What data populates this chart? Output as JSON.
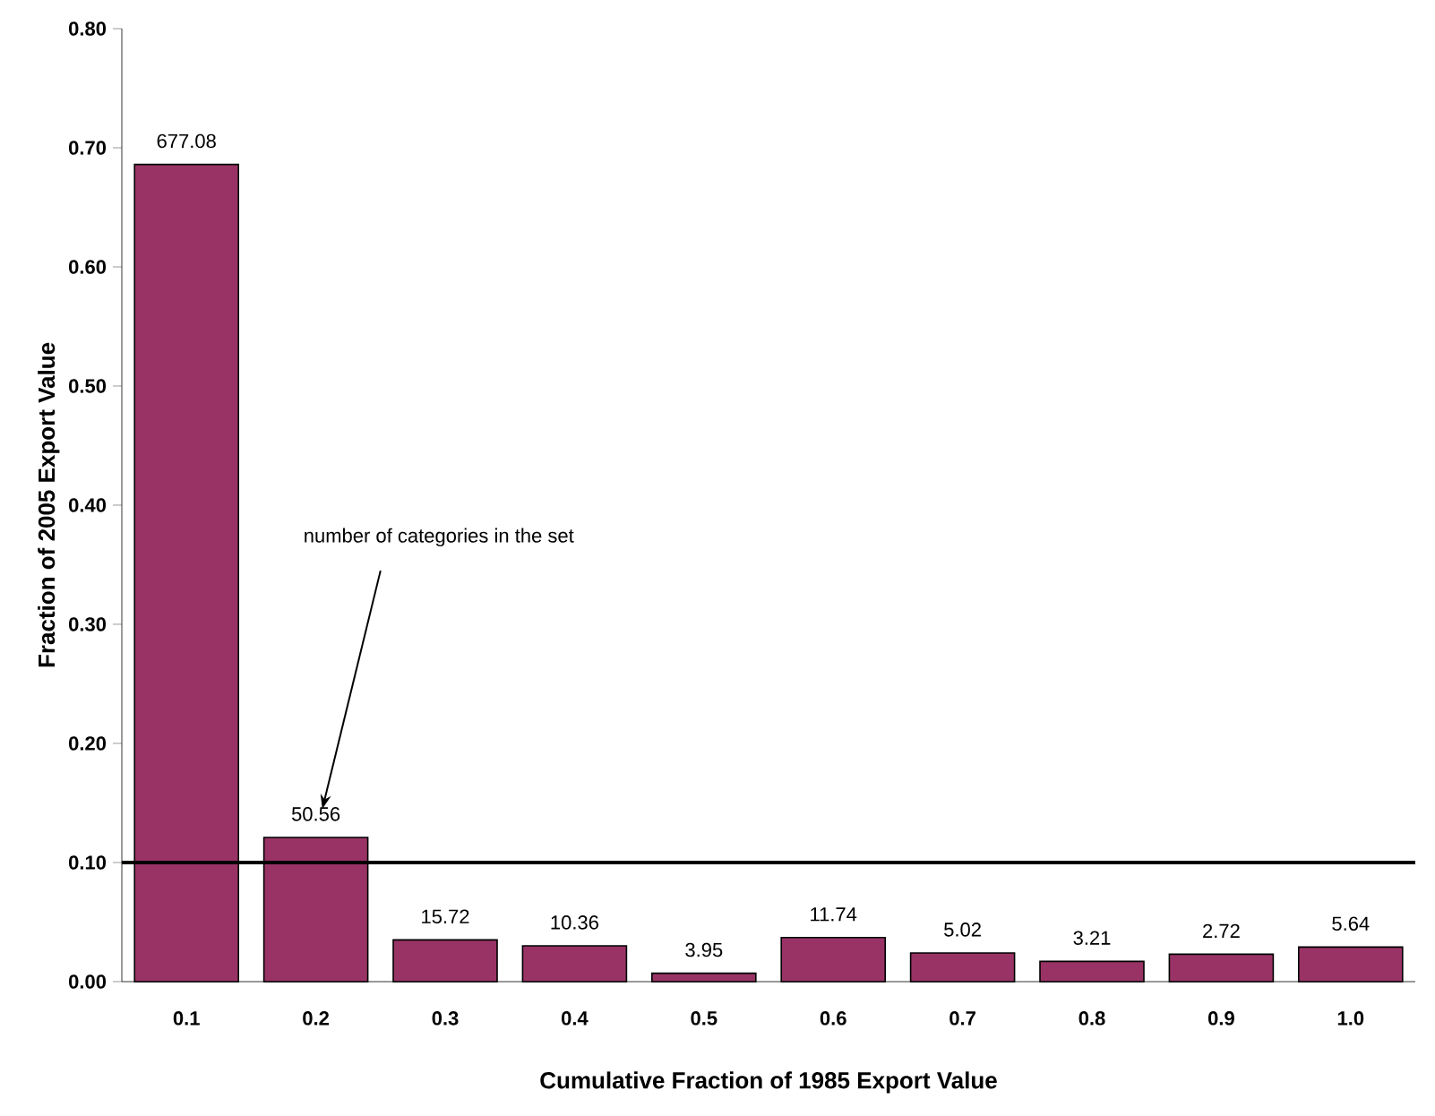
{
  "chart_data": {
    "type": "bar",
    "xlabel": "Cumulative Fraction of 1985 Export Value",
    "ylabel": "Fraction of 2005 Export Value",
    "categories": [
      "0.1",
      "0.2",
      "0.3",
      "0.4",
      "0.5",
      "0.6",
      "0.7",
      "0.8",
      "0.9",
      "1.0"
    ],
    "values": [
      0.686,
      0.121,
      0.035,
      0.03,
      0.007,
      0.037,
      0.024,
      0.017,
      0.023,
      0.029
    ],
    "color": "#993366",
    "ylim": [
      0,
      0.8
    ],
    "yticks": [
      {
        "value": 0,
        "label": "0.00"
      },
      {
        "value": 0.1,
        "label": "0.10"
      },
      {
        "value": 0.2,
        "label": "0.20"
      },
      {
        "value": 0.3,
        "label": "0.30"
      },
      {
        "value": 0.4,
        "label": "0.40"
      },
      {
        "value": 0.5,
        "label": "0.50"
      },
      {
        "value": 0.6,
        "label": "0.60"
      },
      {
        "value": 0.7,
        "label": "0.70"
      },
      {
        "value": 0.8,
        "label": "0.80"
      }
    ],
    "ref_lines": [
      {
        "axis": "y",
        "value": 0.1,
        "color": "#000000"
      }
    ],
    "annotations": [
      "number of categories in the set",
      {
        "text": "677.08",
        "x": "0.1",
        "y": 0.686
      },
      {
        "text": "50.56",
        "x": "0.2",
        "y": 0.121
      },
      {
        "text": "15.72",
        "x": "0.3",
        "y": 0.035
      },
      {
        "text": "10.36",
        "x": "0.4",
        "y": 0.03
      },
      {
        "text": "3.95",
        "x": "0.5",
        "y": 0.007
      },
      {
        "text": "11.74",
        "x": "0.6",
        "y": 0.037
      },
      {
        "text": "5.02",
        "x": "0.7",
        "y": 0.024
      },
      {
        "text": "3.21",
        "x": "0.8",
        "y": 0.017
      },
      {
        "text": "2.72",
        "x": "0.9",
        "y": 0.023
      },
      {
        "text": "5.64",
        "x": "1.0",
        "y": 0.029
      }
    ],
    "grid": false
  }
}
